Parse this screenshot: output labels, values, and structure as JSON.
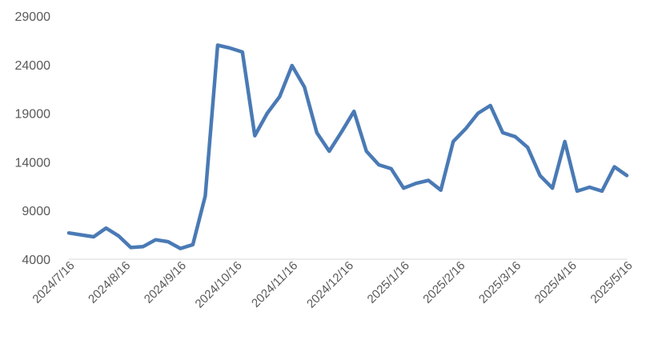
{
  "chart_data": {
    "type": "line",
    "title": "",
    "xlabel": "",
    "ylabel": "",
    "ylim": [
      4000,
      29000
    ],
    "yticks": [
      4000,
      9000,
      14000,
      19000,
      24000,
      29000
    ],
    "ytick_labels": [
      "4000",
      "9000",
      "14000",
      "19000",
      "24000",
      "29000"
    ],
    "xtick_labels": [
      "2024/7/16",
      "2024/8/16",
      "2024/9/16",
      "2024/10/16",
      "2024/11/16",
      "2024/12/16",
      "2025/1/16",
      "2025/2/16",
      "2025/3/16",
      "2025/4/16",
      "2025/5/16"
    ],
    "grid": false,
    "legend": "none",
    "line_color": "#4a7ab5",
    "series": [
      {
        "values": [
          6700,
          6500,
          6300,
          7200,
          6400,
          5200,
          5300,
          6000,
          5800,
          5100,
          5500,
          10500,
          26000,
          25700,
          25300,
          16700,
          19000,
          20700,
          23900,
          21700,
          17000,
          15100,
          17100,
          19200,
          15100,
          13700,
          13300,
          11300,
          11800,
          12100,
          11100,
          16100,
          17400,
          19000,
          19800,
          17000,
          16600,
          15500,
          12600,
          11300,
          16100,
          11000,
          11400,
          11000,
          13500,
          12600
        ]
      }
    ]
  }
}
